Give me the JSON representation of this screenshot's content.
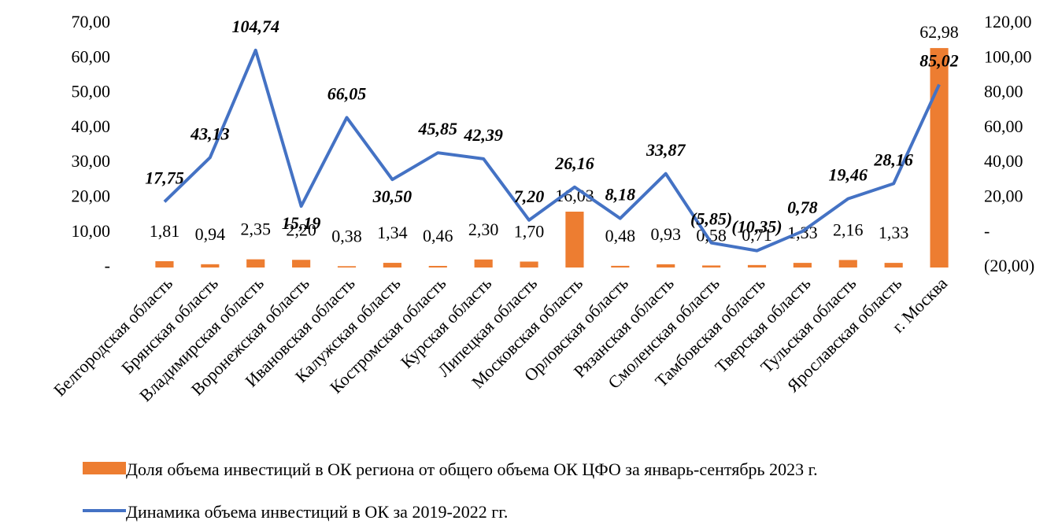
{
  "chart_data": {
    "type": "combo",
    "categories": [
      "Белгородская область",
      "Брянская область",
      "Владимирская область",
      "Воронежская область",
      "Ивановская область",
      "Калужская область",
      "Костромская область",
      "Курская область",
      "Липецкая область",
      "Московская область",
      "Орловская область",
      "Рязанская область",
      "Смоленская область",
      "Тамбовская область",
      "Тверская область",
      "Тульская область",
      "Ярославская область",
      "г. Москва"
    ],
    "series": [
      {
        "name": "Доля объема инвестиций в ОК региона от общего объема ОК ЦФО за январь-сентябрь 2023 г.",
        "type": "bar",
        "color": "#ed7d31",
        "values": [
          1.81,
          0.94,
          2.35,
          2.2,
          0.38,
          1.34,
          0.46,
          2.3,
          1.7,
          16.03,
          0.48,
          0.93,
          0.58,
          0.71,
          1.33,
          2.16,
          1.33,
          62.98
        ],
        "value_labels": [
          "1,81",
          "0,94",
          "2,35",
          "2,20",
          "0,38",
          "1,34",
          "0,46",
          "2,30",
          "1,70",
          "16,03",
          "0,48",
          "0,93",
          "0,58",
          "0,71",
          "1,33",
          "2,16",
          "1,33",
          "62,98"
        ]
      },
      {
        "name": "Динамика объема инвестиций в ОК за 2019-2022 гг.",
        "type": "line",
        "axis": "y2",
        "color": "#4472c4",
        "values": [
          17.75,
          43.13,
          104.74,
          15.19,
          66.05,
          30.5,
          45.85,
          42.39,
          7.2,
          26.16,
          8.18,
          33.87,
          -5.85,
          -10.35,
          0.78,
          19.46,
          28.16,
          85.02
        ],
        "value_labels": [
          "17,75",
          "43,13",
          "104,74",
          "15,19",
          "66,05",
          "30,50",
          "45,85",
          "42,39",
          "7,20",
          "26,16",
          "8,18",
          "33,87",
          "(5,85)",
          "(10,35)",
          "0,78",
          "19,46",
          "28,16",
          "85,02"
        ]
      }
    ],
    "ylim": [
      0,
      70
    ],
    "yticks": [
      {
        "value": 0,
        "label": "-"
      },
      {
        "value": 10,
        "label": "10,00"
      },
      {
        "value": 20,
        "label": "20,00"
      },
      {
        "value": 30,
        "label": "30,00"
      },
      {
        "value": 40,
        "label": "40,00"
      },
      {
        "value": 50,
        "label": "50,00"
      },
      {
        "value": 60,
        "label": "60,00"
      },
      {
        "value": 70,
        "label": "70,00"
      }
    ],
    "y2lim": [
      -20,
      120
    ],
    "y2ticks": [
      {
        "value": -20,
        "label": "(20,00)"
      },
      {
        "value": 0,
        "label": "-"
      },
      {
        "value": 20,
        "label": "20,00"
      },
      {
        "value": 40,
        "label": "40,00"
      },
      {
        "value": 60,
        "label": "60,00"
      },
      {
        "value": 80,
        "label": "80,00"
      },
      {
        "value": 100,
        "label": "100,00"
      },
      {
        "value": 120,
        "label": "120,00"
      }
    ],
    "legend": "bottom"
  }
}
